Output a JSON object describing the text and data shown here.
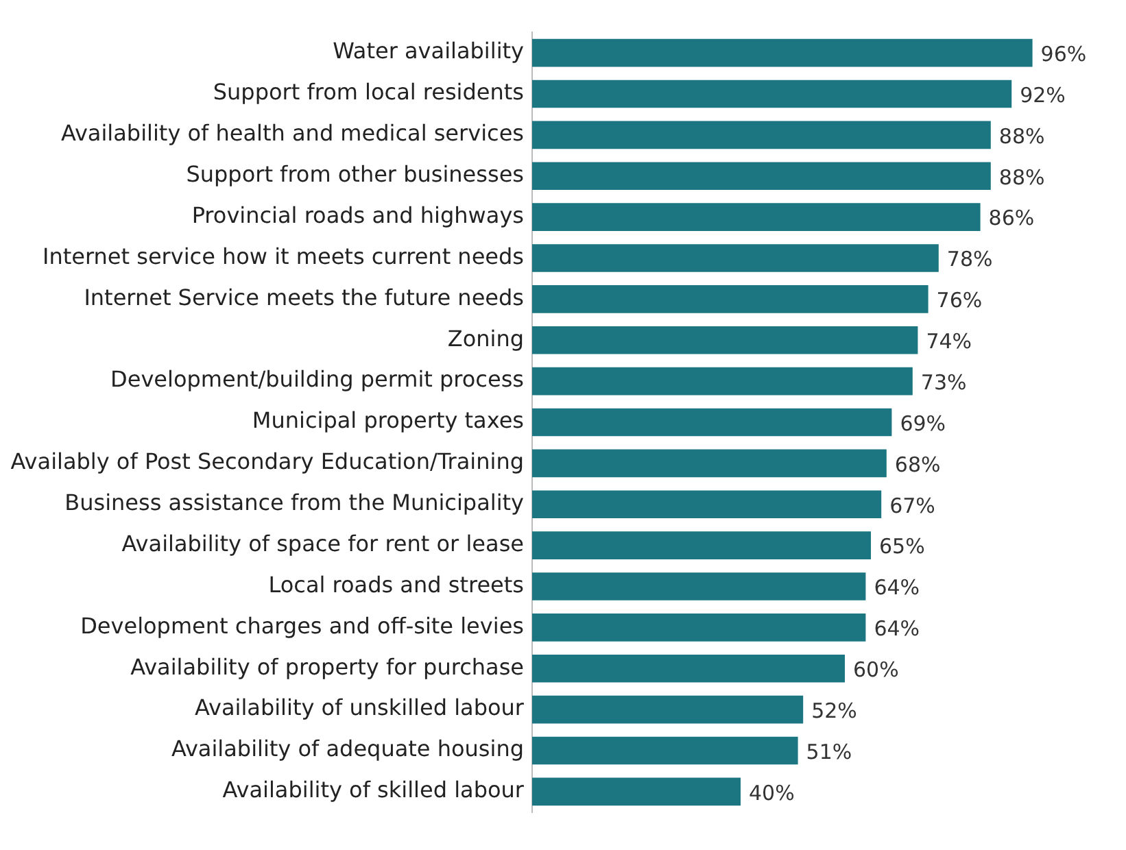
{
  "chart_data": {
    "type": "bar",
    "orientation": "horizontal",
    "categories": [
      "Water availability",
      "Support from local residents",
      "Availability of health and medical services",
      "Support from other businesses",
      "Provincial roads and highways",
      "Internet service how it meets current needs",
      "Internet Service meets the future needs",
      "Zoning",
      "Development/building permit process",
      "Municipal property taxes",
      "Availably of Post Secondary Education/Training",
      "Business assistance from the Municipality",
      "Availability of space for rent or lease",
      "Local roads and streets",
      "Development charges and off-site levies",
      "Availability of property for purchase",
      "Availability of unskilled labour",
      "Availability of adequate housing",
      "Availability of skilled labour"
    ],
    "values": [
      96,
      92,
      88,
      88,
      86,
      78,
      76,
      74,
      73,
      69,
      68,
      67,
      65,
      64,
      64,
      60,
      52,
      51,
      40
    ],
    "value_labels": [
      "96%",
      "92%",
      "88%",
      "88%",
      "86%",
      "78%",
      "76%",
      "74%",
      "73%",
      "69%",
      "68%",
      "67%",
      "65%",
      "64%",
      "64%",
      "60%",
      "52%",
      "51%",
      "40%"
    ],
    "color": "#1b7682"
  }
}
